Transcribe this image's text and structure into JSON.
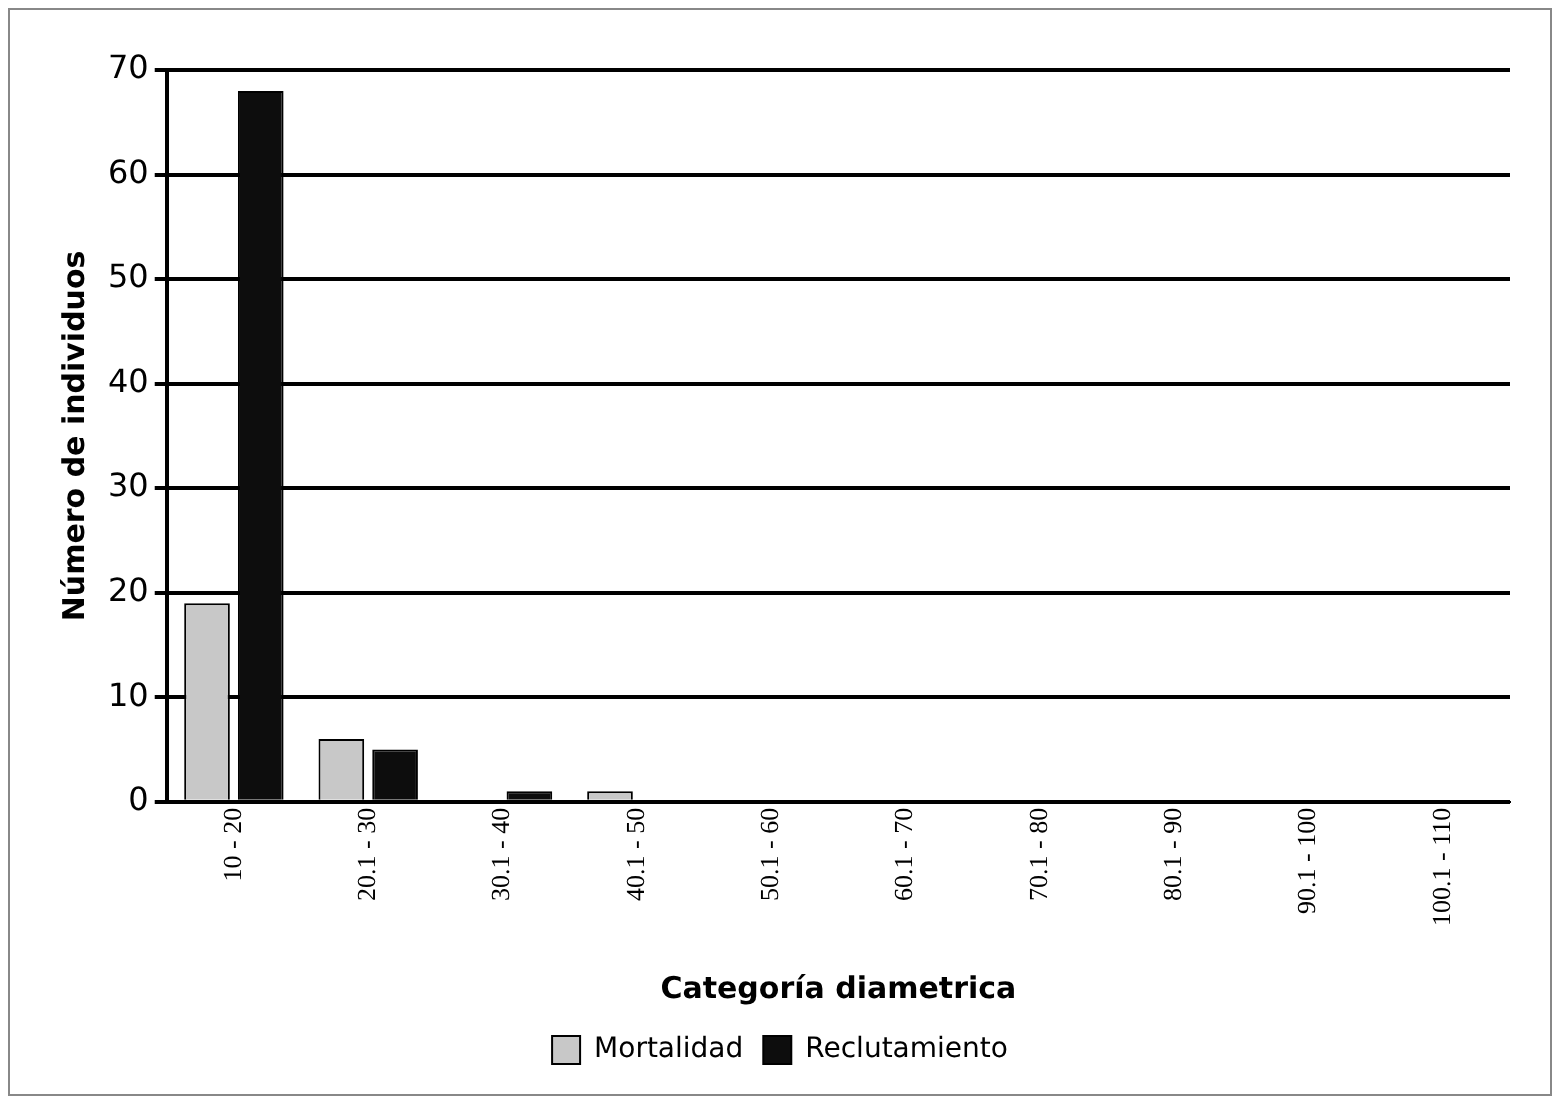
{
  "chart_data": {
    "type": "bar",
    "xlabel": "Categoría diametrica",
    "ylabel": "Número de individuos",
    "categories": [
      "10 - 20",
      "20.1 - 30",
      "30.1 - 40",
      "40.1 - 50",
      "50.1 - 60",
      "60.1 - 70",
      "70.1 - 80",
      "80.1 - 90",
      "90.1 - 100",
      "100.1 - 110"
    ],
    "series": [
      {
        "name": "Mortalidad",
        "color": "#c8c8c8",
        "values": [
          19,
          6,
          0,
          1,
          0,
          0,
          0,
          0,
          0,
          0
        ]
      },
      {
        "name": "Reclutamiento",
        "color": "#0d0d0d",
        "values": [
          68,
          5,
          1,
          0,
          0,
          0,
          0,
          0,
          0,
          0
        ]
      }
    ],
    "ylim": [
      0,
      70
    ],
    "yticks": [
      0,
      10,
      20,
      30,
      40,
      50,
      60,
      70
    ],
    "grid": "y",
    "legend": "bottom"
  }
}
